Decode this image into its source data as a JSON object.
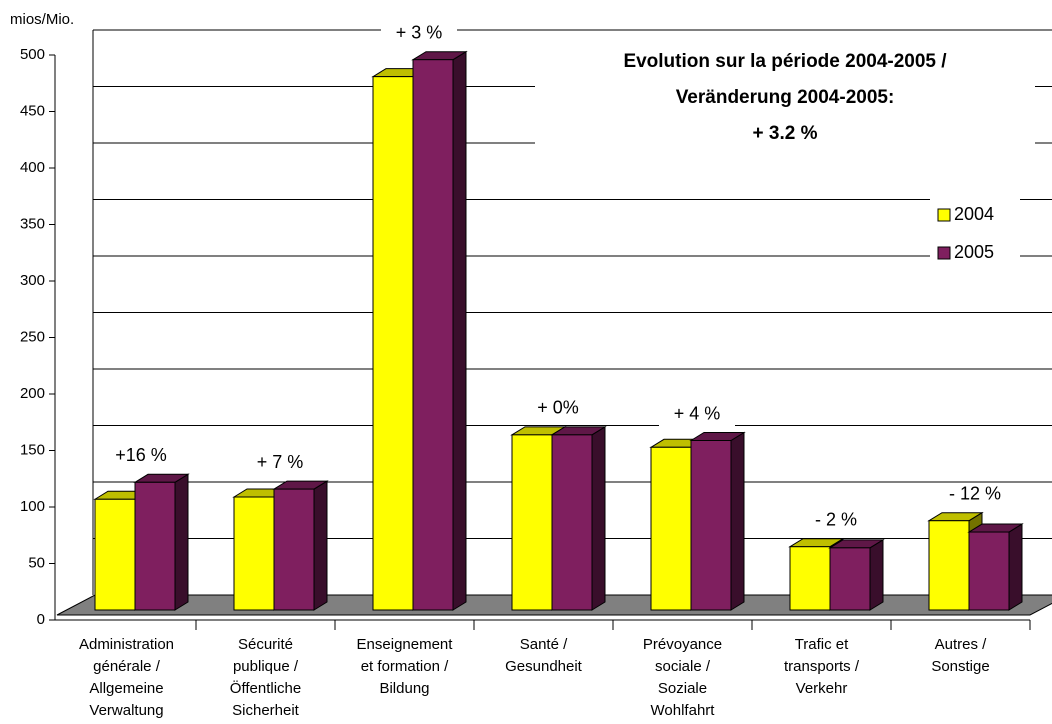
{
  "chart_data": {
    "type": "bar3d",
    "title": [
      "Evolution sur la période 2004-2005 /",
      "Veränderung 2004-2005:",
      "+ 3.2 %"
    ],
    "y_label": "mios/Mio.",
    "categories": [
      [
        "Administration",
        "générale /",
        "Allgemeine",
        "Verwaltung"
      ],
      [
        "Sécurité",
        "publique /",
        "Öffentliche",
        "Sicherheit"
      ],
      [
        "Enseignement",
        "et formation /",
        "Bildung"
      ],
      [
        "Santé /",
        "Gesundheit"
      ],
      [
        "Prévoyance",
        "sociale /",
        "Soziale",
        "Wohlfahrt"
      ],
      [
        "Trafic et",
        "transports /",
        "Verkehr"
      ],
      [
        "Autres /",
        "Sonstige"
      ]
    ],
    "series": [
      {
        "name": "2004",
        "color": "#ffff00",
        "values": [
          98,
          100,
          472,
          155,
          144,
          56,
          79
        ]
      },
      {
        "name": "2005",
        "color": "#7f1f5f",
        "values": [
          113,
          107,
          487,
          155,
          150,
          55,
          69
        ]
      }
    ],
    "annotations": [
      "+16 %",
      "+ 7 %",
      "+ 3 %",
      "+ 0%",
      "+ 4 %",
      "- 2 %",
      "- 12 %"
    ],
    "ylim": [
      0,
      500
    ],
    "yticks": [
      0,
      50,
      100,
      150,
      200,
      250,
      300,
      350,
      400,
      450,
      500
    ],
    "grid": true,
    "legend": "right"
  }
}
